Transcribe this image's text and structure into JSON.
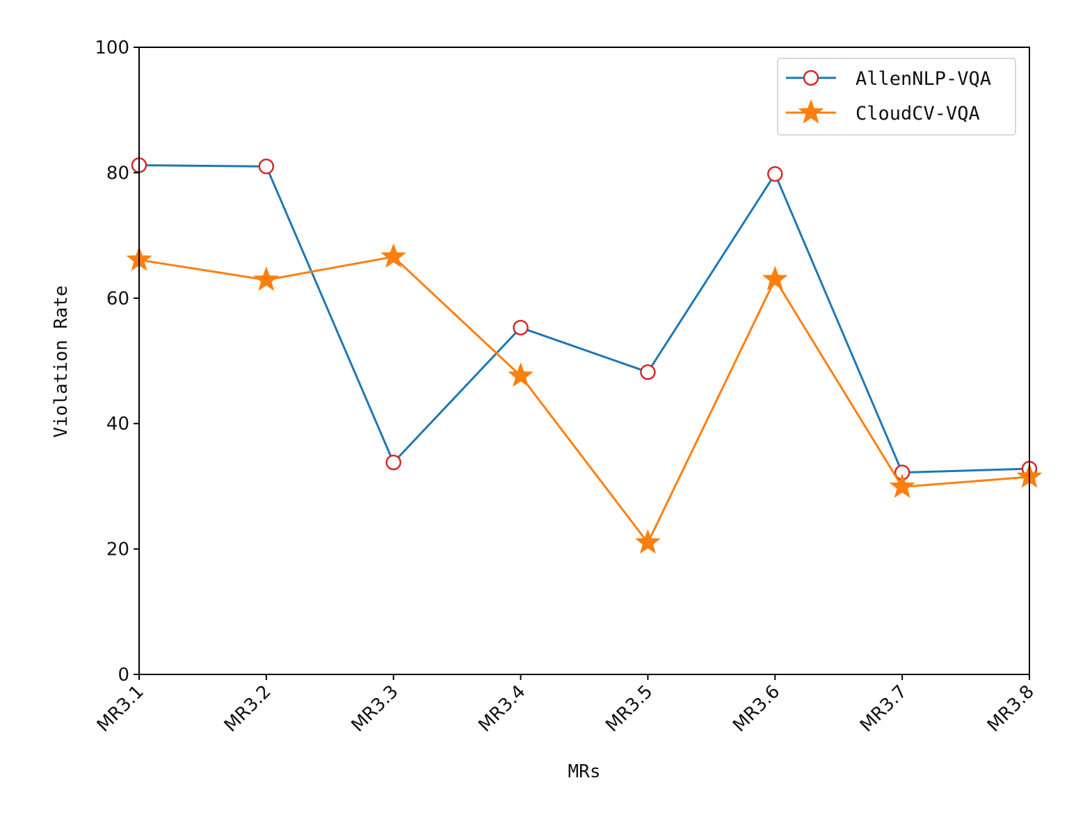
{
  "chart_data": {
    "type": "line",
    "title": "",
    "xlabel": "MRs",
    "ylabel": "Violation Rate",
    "categories": [
      "MR3.1",
      "MR3.2",
      "MR3.3",
      "MR3.4",
      "MR3.5",
      "MR3.6",
      "MR3.7",
      "MR3.8"
    ],
    "ylim": [
      0,
      100
    ],
    "yticks": [
      0,
      20,
      40,
      60,
      80,
      100
    ],
    "grid": false,
    "legend_position": "top-right",
    "series": [
      {
        "name": "AllenNLP-VQA",
        "color": "#1f77b4",
        "marker": "open-circle",
        "marker_color": "#d62728",
        "values": [
          81.2,
          81.0,
          33.8,
          55.3,
          48.2,
          79.8,
          32.2,
          32.8
        ]
      },
      {
        "name": "CloudCV-VQA",
        "color": "#ff7f0e",
        "marker": "star",
        "marker_color": "#ff7f0e",
        "values": [
          66.1,
          62.9,
          66.6,
          47.6,
          21.0,
          63.0,
          29.9,
          31.5
        ]
      }
    ]
  }
}
